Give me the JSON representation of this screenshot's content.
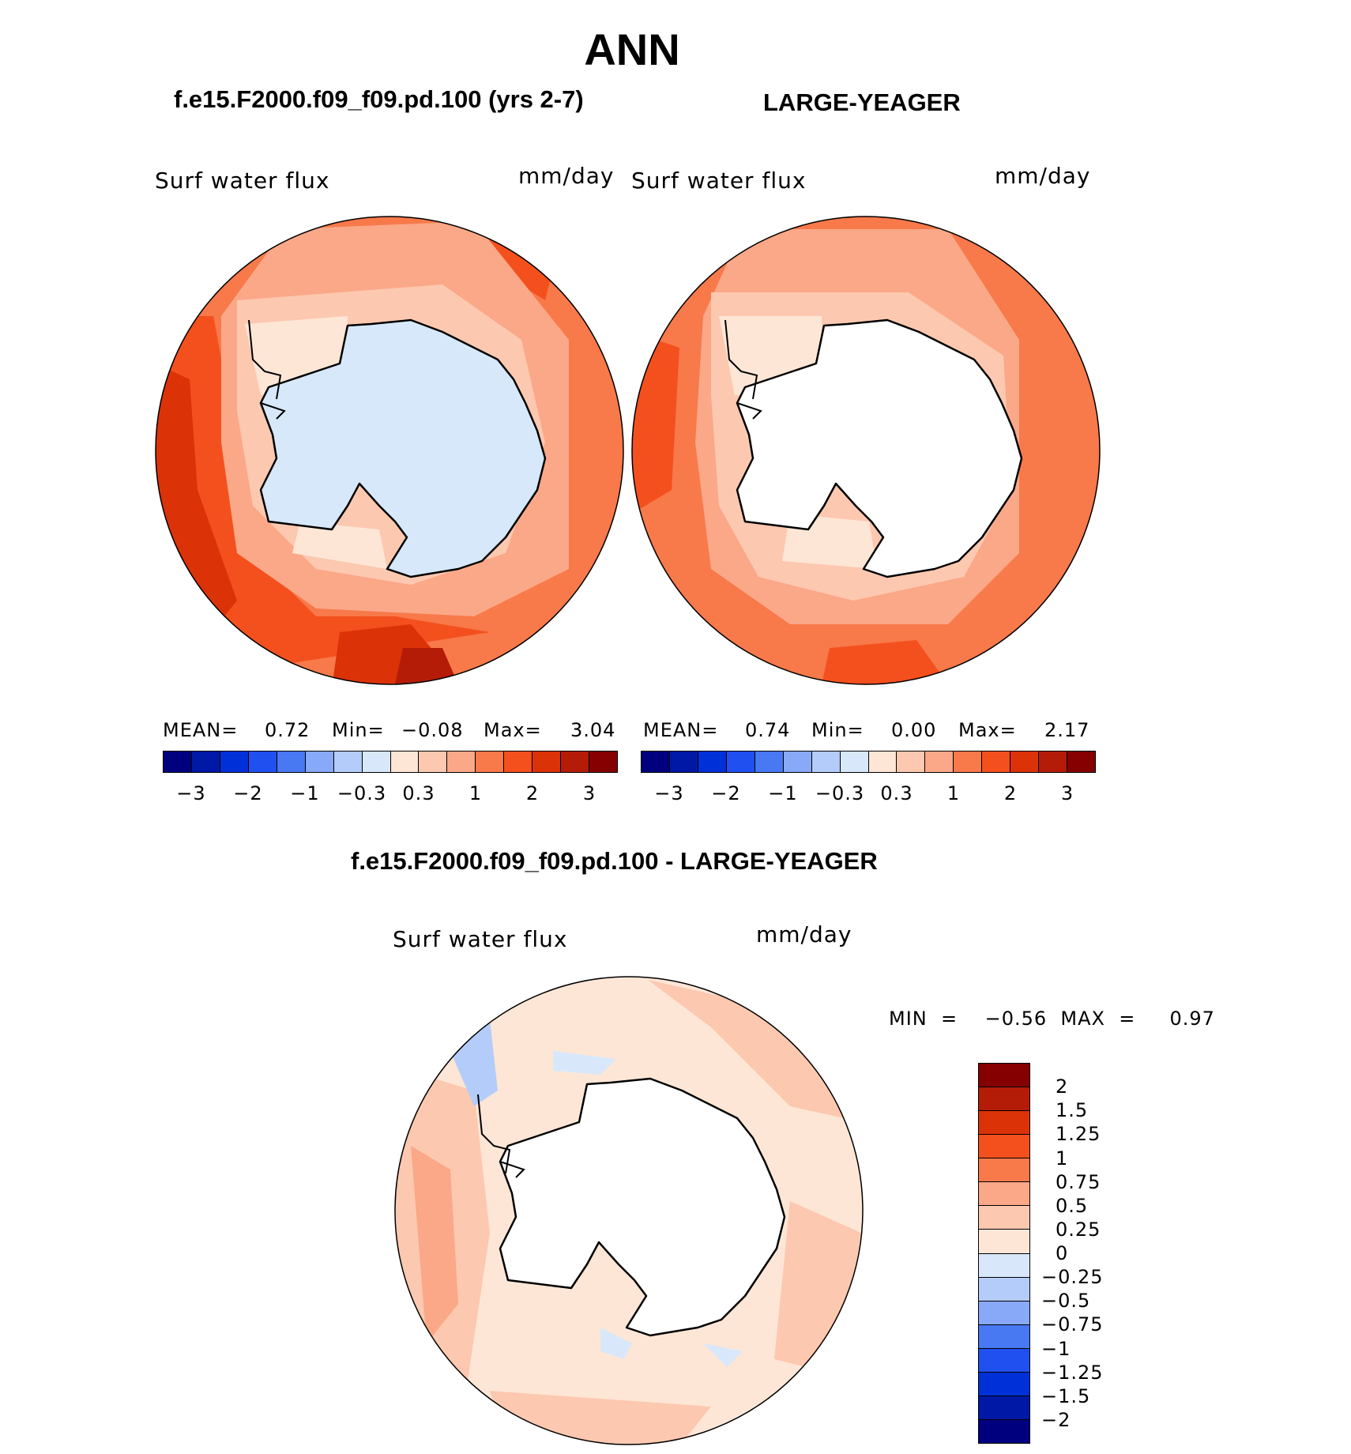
{
  "header": {
    "title": "ANN",
    "left_case": "f.e15.F2000.f09_f09.pd.100 (yrs 2-7)",
    "right_case": "LARGE-YEAGER",
    "diff_title": "f.e15.F2000.f09_f09.pd.100 - LARGE-YEAGER"
  },
  "panels": {
    "left": {
      "variable": "Surf  water  flux",
      "units": "mm/day",
      "mean_label": "MEAN=",
      "mean": "0.72",
      "min_label": "Min=",
      "min": "−0.08",
      "max_label": "Max=",
      "max": "3.04"
    },
    "right": {
      "variable": "Surf  water  flux",
      "units": "mm/day",
      "mean_label": "MEAN=",
      "mean": "0.74",
      "min_label": "Min=",
      "min": "0.00",
      "max_label": "Max=",
      "max": "2.17"
    },
    "diff": {
      "variable": "Surf  water  flux",
      "units": "mm/day",
      "minmax": "MIN  =    −0.56  MAX  =     0.97"
    }
  },
  "colorbar_top": {
    "colors": [
      "#00007f",
      "#0018a6",
      "#0030d8",
      "#2050f0",
      "#4878f2",
      "#88a8f8",
      "#b4ccfa",
      "#d8e8fa",
      "#fde6d6",
      "#fdc8b0",
      "#fba888",
      "#f8794a",
      "#f4501e",
      "#dc3208",
      "#b41c08",
      "#850000"
    ],
    "labels": [
      "−3",
      "−2",
      "−1",
      "−0.3",
      "0.3",
      "1",
      "2",
      "3"
    ]
  },
  "colorbar_diff": {
    "colors": [
      "#850000",
      "#b41c08",
      "#dc3208",
      "#f4501e",
      "#f8794a",
      "#fba888",
      "#fdc8b0",
      "#fde6d6",
      "#d8e8fa",
      "#b4ccfa",
      "#88a8f8",
      "#4878f2",
      "#2050f0",
      "#0030d8",
      "#0018a6",
      "#00007f"
    ],
    "labels": [
      "2",
      "1.5",
      "1.25",
      "1",
      "0.75",
      "0.5",
      "0.25",
      "0",
      "−0.25",
      "−0.5",
      "−0.75",
      "−1",
      "−1.25",
      "−1.5",
      "−2"
    ]
  },
  "map_colors": {
    "land_left": "#d6e8fa",
    "land_right": "#ffffff",
    "land_diff": "#ffffff",
    "coast": "#000000"
  }
}
